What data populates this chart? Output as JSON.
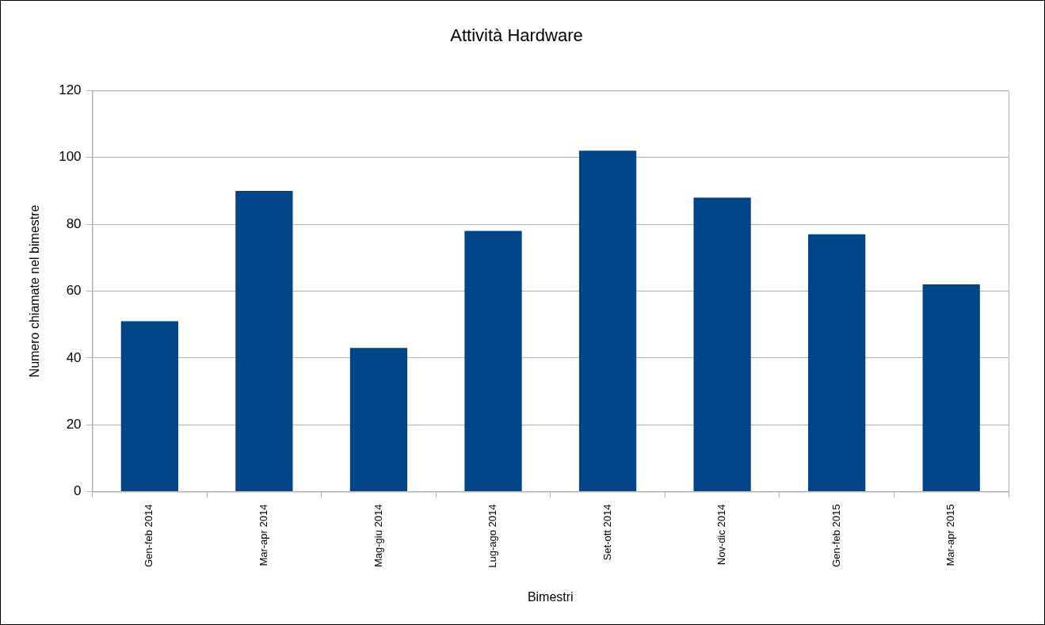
{
  "chart_data": {
    "type": "bar",
    "title": "Attività Hardware",
    "xlabel": "Bimestri",
    "ylabel": "Numero chiamate nel bimestre",
    "categories": [
      "Gen-feb 2014",
      "Mar-apr 2014",
      "Mag-giu 2014",
      "Lug-ago 2014",
      "Set-ott 2014",
      "Nov-dic 2014",
      "Gen-feb 2015",
      "Mar-apr 2015"
    ],
    "values": [
      51,
      90,
      43,
      78,
      102,
      88,
      77,
      62
    ],
    "color": "#004586",
    "ylim": [
      0,
      120
    ],
    "yticks": [
      0,
      20,
      40,
      60,
      80,
      100,
      120
    ],
    "grid": "y",
    "legend": false
  }
}
